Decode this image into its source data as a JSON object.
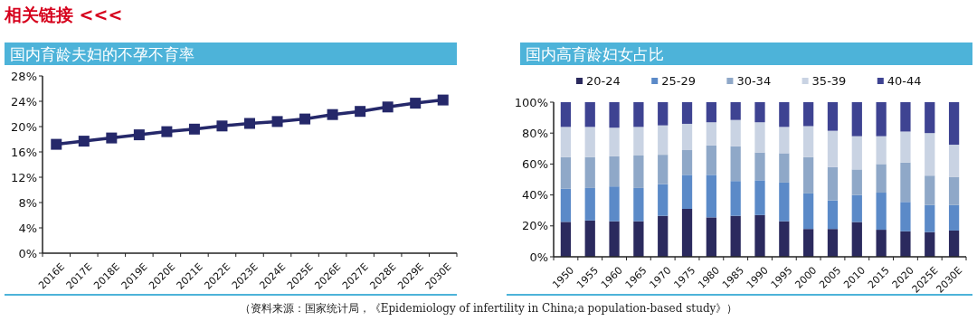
{
  "chart_data": [
    {
      "type": "line",
      "title": "国内育龄夫妇的不孕不育率",
      "annotations": [
        "相关链接 <<<"
      ],
      "categories": [
        "2016E",
        "2017E",
        "2018E",
        "2019E",
        "2020E",
        "2021E",
        "2022E",
        "2023E",
        "2024E",
        "2025E",
        "2026E",
        "2027E",
        "2028E",
        "2029E",
        "2030E"
      ],
      "series": [
        {
          "color": "#25286a",
          "values": [
            17.2,
            17.7,
            18.2,
            18.7,
            19.2,
            19.6,
            20.1,
            20.5,
            20.8,
            21.2,
            21.9,
            22.4,
            23.1,
            23.7,
            24.2
          ]
        }
      ],
      "ylim": [
        0,
        28
      ],
      "yticks": [
        {
          "value": 0,
          "label": "0%"
        },
        {
          "value": 4,
          "label": "4%"
        },
        {
          "value": 8,
          "label": "8%"
        },
        {
          "value": 12,
          "label": "12%"
        },
        {
          "value": 16,
          "label": "16%"
        },
        {
          "value": 20,
          "label": "20%"
        },
        {
          "value": 24,
          "label": "24%"
        },
        {
          "value": 28,
          "label": "28%"
        }
      ],
      "marker": "square",
      "legend": false,
      "grid": false
    },
    {
      "type": "bar",
      "stacked": true,
      "title": "国内高育龄妇女占比",
      "annotations": [
        "（资料来源：国家统计局，《Epidemiology of infertility in China;a population-based study》）"
      ],
      "legend": "top",
      "categories": [
        "1950",
        "1955",
        "1960",
        "1965",
        "1970",
        "1975",
        "1980",
        "1985",
        "1990",
        "1995",
        "2000",
        "2005",
        "2010",
        "2015",
        "2020",
        "2025E",
        "2030E"
      ],
      "series": [
        {
          "name": "20-24",
          "color": "#2b2a5e",
          "values": [
            22.6,
            23.5,
            23,
            23,
            26.5,
            31,
            25.5,
            26.5,
            27,
            23,
            18,
            18,
            22.5,
            17.5,
            16.5,
            16,
            17
          ]
        },
        {
          "name": "25-29",
          "color": "#5b8ac8",
          "values": [
            21.4,
            21,
            22.5,
            21.5,
            20.5,
            22,
            27.5,
            22.5,
            22.5,
            25,
            23,
            18.5,
            17.5,
            24,
            19,
            17.5,
            16.5
          ]
        },
        {
          "name": "30-34",
          "color": "#8fa8c8",
          "values": [
            20.5,
            20,
            19.5,
            21,
            19,
            16,
            19,
            22.5,
            18,
            19,
            23.5,
            21.5,
            16.5,
            18.5,
            25.5,
            19,
            18
          ]
        },
        {
          "name": "35-39",
          "color": "#c9d3e3",
          "values": [
            19.5,
            19.5,
            18.5,
            18.5,
            19,
            17,
            15,
            17,
            19.5,
            17,
            20,
            23.5,
            21.5,
            18,
            20,
            27.5,
            21
          ]
        },
        {
          "name": "40-44",
          "color": "#3e4392",
          "values": [
            16,
            16,
            16.5,
            16,
            15,
            14,
            13,
            11.5,
            13,
            16,
            15.5,
            18.5,
            22,
            22,
            19,
            20,
            27.5
          ]
        }
      ],
      "ylim": [
        0,
        100
      ],
      "yticks": [
        {
          "value": 0,
          "label": "0%"
        },
        {
          "value": 20,
          "label": "20%"
        },
        {
          "value": 40,
          "label": "40%"
        },
        {
          "value": 60,
          "label": "60%"
        },
        {
          "value": 80,
          "label": "80%"
        },
        {
          "value": 100,
          "label": "100%"
        }
      ],
      "grid": false
    }
  ]
}
